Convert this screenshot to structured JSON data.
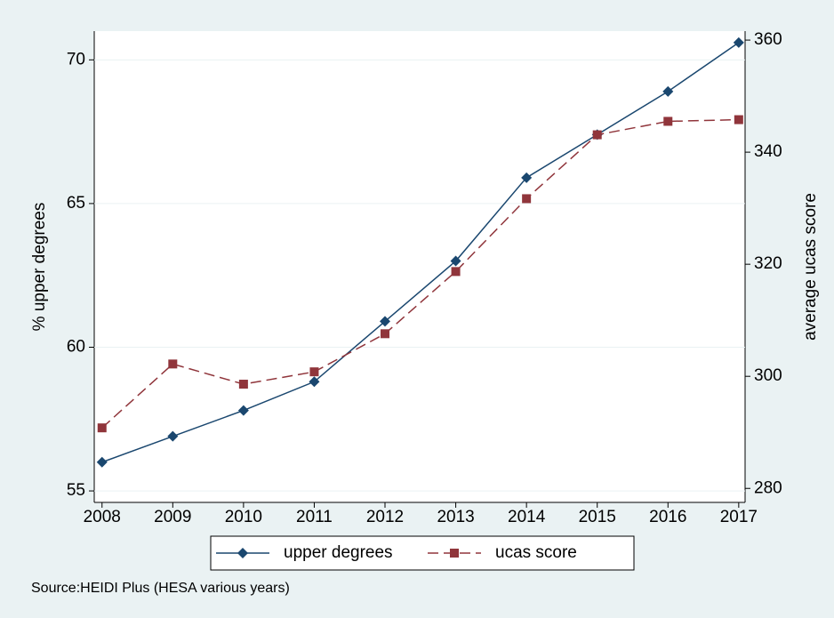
{
  "chart_data": {
    "type": "line",
    "x": [
      2008,
      2009,
      2010,
      2011,
      2012,
      2013,
      2014,
      2015,
      2016,
      2017
    ],
    "xlim": [
      2007.89,
      2017.09
    ],
    "xticks": [
      2008,
      2009,
      2010,
      2011,
      2012,
      2013,
      2014,
      2015,
      2016,
      2017
    ],
    "y_label": "% upper degrees",
    "y2_label": "average ucas score",
    "ylim": [
      54.6,
      71
    ],
    "yticks": [
      55,
      60,
      65,
      70
    ],
    "y2lim": [
      277.5,
      361.6
    ],
    "y2ticks": [
      280,
      300,
      320,
      340,
      360
    ],
    "grid": true,
    "legend": "bottom",
    "series": [
      {
        "name": "upper degrees",
        "color": "#1a476f",
        "marker": "diamond",
        "dashed": false,
        "axis": "y",
        "values": [
          56.0,
          56.9,
          57.8,
          58.8,
          60.9,
          63.0,
          65.9,
          67.4,
          68.9,
          70.6
        ]
      },
      {
        "name": "ucas score",
        "color": "#90353b",
        "marker": "square",
        "dashed": true,
        "axis": "y2",
        "values": [
          290.8,
          302.2,
          298.6,
          300.8,
          307.6,
          318.7,
          331.7,
          343.1,
          345.5,
          345.8
        ]
      }
    ],
    "note": "Source:HEIDI Plus (HESA various years)"
  }
}
